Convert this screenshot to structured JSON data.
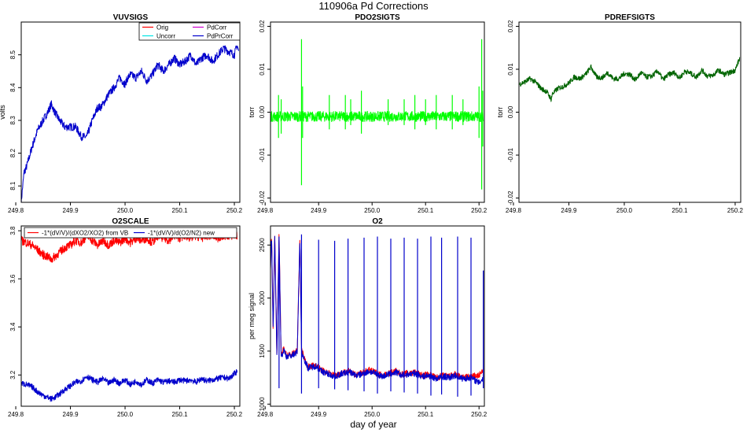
{
  "figure": {
    "title": "110906a   Pd Corrections",
    "xlabel": "day of year"
  },
  "chart_data": [
    {
      "type": "line",
      "title": "VUVSIGS",
      "ylabel": "volts",
      "xlim": [
        249.81,
        250.21
      ],
      "ylim": [
        8.05,
        8.6
      ],
      "xticks": [
        249.8,
        249.9,
        250.0,
        250.1,
        250.2
      ],
      "xtick_labels": [
        "249.8",
        "249.9",
        "250.0",
        "250.1",
        "250.2"
      ],
      "yticks": [
        8.1,
        8.2,
        8.3,
        8.4,
        8.5
      ],
      "ytick_labels": [
        "8.1",
        "8.2",
        "8.3",
        "8.4",
        "8.5"
      ],
      "ytick_rotated": true,
      "legend": {
        "position": "top-right",
        "columns": 2,
        "entries": [
          {
            "name": "Orig",
            "color": "#ff0000"
          },
          {
            "name": "Uncorr",
            "color": "#00e5e5"
          },
          {
            "name": "PdCorr",
            "color": "#d000d0"
          },
          {
            "name": "PdPrCorr",
            "color": "#0000cc"
          }
        ]
      },
      "series": [
        {
          "name": "PdPrCorr",
          "color": "#0000cc",
          "band": 0.012,
          "x": [
            249.81,
            249.815,
            249.82,
            249.83,
            249.84,
            249.85,
            249.86,
            249.865,
            249.87,
            249.88,
            249.89,
            249.9,
            249.91,
            249.92,
            249.93,
            249.94,
            249.95,
            249.955,
            249.96,
            249.97,
            249.98,
            249.99,
            250.0,
            250.005,
            250.01,
            250.02,
            250.03,
            250.04,
            250.05,
            250.06,
            250.07,
            250.08,
            250.09,
            250.1,
            250.11,
            250.12,
            250.13,
            250.14,
            250.15,
            250.16,
            250.17,
            250.18,
            250.19,
            250.2,
            250.205,
            250.208
          ],
          "y": [
            8.05,
            8.14,
            8.16,
            8.22,
            8.27,
            8.3,
            8.33,
            8.35,
            8.33,
            8.3,
            8.28,
            8.28,
            8.28,
            8.25,
            8.25,
            8.3,
            8.34,
            8.34,
            8.35,
            8.38,
            8.4,
            8.43,
            8.41,
            8.43,
            8.44,
            8.43,
            8.45,
            8.42,
            8.44,
            8.47,
            8.45,
            8.47,
            8.49,
            8.47,
            8.48,
            8.5,
            8.47,
            8.49,
            8.5,
            8.48,
            8.5,
            8.52,
            8.51,
            8.5,
            8.53,
            8.51
          ]
        }
      ]
    },
    {
      "type": "line",
      "title": "PDO2SIGTS",
      "ylabel": "torr",
      "xlim": [
        249.81,
        250.21
      ],
      "ylim": [
        -0.021,
        0.021
      ],
      "xticks": [
        249.8,
        249.9,
        250.0,
        250.1,
        250.2
      ],
      "xtick_labels": [
        "249.8",
        "249.9",
        "250.0",
        "250.1",
        "250.2"
      ],
      "yticks": [
        -0.02,
        -0.01,
        0.0,
        0.01,
        0.02
      ],
      "ytick_labels": [
        "-0.02",
        "-0.01",
        "0.00",
        "0.01",
        "0.02"
      ],
      "ytick_rotated": true,
      "series": [
        {
          "name": "",
          "color": "#00ff00",
          "band": 0.0012,
          "x": [
            249.81,
            250.208
          ],
          "y": [
            -0.001,
            -0.001
          ]
        }
      ],
      "spikes": {
        "color": "#00ff00",
        "x": [
          249.825,
          249.83,
          249.868,
          249.87,
          249.92,
          249.95,
          249.96,
          249.98,
          250.03,
          250.06,
          250.08,
          250.1,
          250.12,
          250.15,
          250.17,
          250.2,
          250.205,
          250.207
        ],
        "high": [
          0.004,
          0.003,
          0.017,
          0.006,
          0.004,
          0.004,
          0.003,
          0.005,
          0.003,
          0.003,
          0.004,
          0.003,
          0.004,
          0.004,
          0.003,
          0.006,
          0.017,
          0.005
        ],
        "low": [
          -0.006,
          -0.005,
          -0.017,
          -0.006,
          -0.004,
          -0.004,
          -0.003,
          -0.005,
          -0.003,
          -0.003,
          -0.004,
          -0.003,
          -0.004,
          -0.004,
          -0.003,
          -0.006,
          -0.018,
          -0.008
        ]
      }
    },
    {
      "type": "line",
      "title": "PDREFSIGTS",
      "ylabel": "torr",
      "xlim": [
        249.81,
        250.21
      ],
      "ylim": [
        -0.021,
        0.021
      ],
      "xticks": [
        249.8,
        249.9,
        250.0,
        250.1,
        250.2
      ],
      "xtick_labels": [
        "249.8",
        "249.9",
        "250.0",
        "250.1",
        "250.2"
      ],
      "yticks": [
        -0.02,
        -0.01,
        0.0,
        0.01,
        0.02
      ],
      "ytick_labels": [
        "-0.02",
        "-0.01",
        "0.00",
        "0.01",
        "0.02"
      ],
      "ytick_rotated": true,
      "series": [
        {
          "name": "",
          "color": "#006400",
          "band": 0.0006,
          "x": [
            249.81,
            249.82,
            249.83,
            249.84,
            249.85,
            249.86,
            249.868,
            249.87,
            249.88,
            249.89,
            249.9,
            249.91,
            249.92,
            249.93,
            249.94,
            249.95,
            249.96,
            249.97,
            249.98,
            249.99,
            250.0,
            250.01,
            250.02,
            250.03,
            250.04,
            250.05,
            250.06,
            250.07,
            250.08,
            250.09,
            250.1,
            250.11,
            250.12,
            250.13,
            250.14,
            250.15,
            250.16,
            250.17,
            250.18,
            250.19,
            250.2,
            250.205,
            250.208
          ],
          "y": [
            0.0065,
            0.007,
            0.0078,
            0.007,
            0.0055,
            0.0048,
            0.003,
            0.0042,
            0.0055,
            0.006,
            0.0068,
            0.0082,
            0.0078,
            0.0088,
            0.0105,
            0.0082,
            0.008,
            0.0092,
            0.0078,
            0.0078,
            0.009,
            0.0088,
            0.0075,
            0.0092,
            0.0082,
            0.0084,
            0.0096,
            0.0076,
            0.0088,
            0.0092,
            0.008,
            0.0096,
            0.009,
            0.0082,
            0.0098,
            0.0084,
            0.0086,
            0.0098,
            0.0088,
            0.0092,
            0.0098,
            0.0115,
            0.0125
          ]
        }
      ]
    },
    {
      "type": "line",
      "title": "O2SCALE",
      "ylabel": "",
      "xlim": [
        249.81,
        250.21
      ],
      "ylim": [
        3.07,
        3.82
      ],
      "xticks": [
        249.8,
        249.9,
        250.0,
        250.1,
        250.2
      ],
      "xtick_labels": [
        "249.8",
        "249.9",
        "250.0",
        "250.1",
        "250.2"
      ],
      "yticks": [
        3.2,
        3.4,
        3.6,
        3.8
      ],
      "ytick_labels": [
        "3.2",
        "3.4",
        "3.6",
        "3.8"
      ],
      "ytick_rotated": true,
      "legend": {
        "position": "top",
        "columns": 2,
        "entries": [
          {
            "name": "-1*(dV/V)/(dXO2/XO2) from VB",
            "color": "#ff0000"
          },
          {
            "name": "-1*(dV/V)/d(O2/N2) new",
            "color": "#0000cc"
          }
        ]
      },
      "series": [
        {
          "name": "-1*(dV/V)/(dXO2/XO2) from VB",
          "color": "#ff0000",
          "band": 0.018,
          "x": [
            249.81,
            249.82,
            249.83,
            249.84,
            249.85,
            249.86,
            249.865,
            249.87,
            249.88,
            249.89,
            249.9,
            249.91,
            249.92,
            249.93,
            249.94,
            249.95,
            249.96,
            249.97,
            249.98,
            249.99,
            250.0,
            250.01,
            250.02,
            250.03,
            250.04,
            250.05,
            250.06,
            250.07,
            250.08,
            250.09,
            250.1,
            250.11,
            250.12,
            250.13,
            250.14,
            250.15,
            250.16,
            250.17,
            250.18,
            250.19,
            250.2,
            250.205
          ],
          "y": [
            3.76,
            3.75,
            3.74,
            3.72,
            3.7,
            3.69,
            3.68,
            3.69,
            3.71,
            3.73,
            3.74,
            3.76,
            3.75,
            3.78,
            3.76,
            3.74,
            3.76,
            3.74,
            3.76,
            3.75,
            3.77,
            3.75,
            3.77,
            3.76,
            3.77,
            3.75,
            3.78,
            3.77,
            3.76,
            3.78,
            3.77,
            3.78,
            3.77,
            3.78,
            3.77,
            3.78,
            3.78,
            3.77,
            3.78,
            3.78,
            3.78,
            3.78
          ]
        },
        {
          "name": "-1*(dV/V)/d(O2/N2) new",
          "color": "#0000cc",
          "band": 0.012,
          "x": [
            249.81,
            249.82,
            249.83,
            249.84,
            249.85,
            249.86,
            249.865,
            249.87,
            249.88,
            249.89,
            249.9,
            249.91,
            249.92,
            249.93,
            249.94,
            249.95,
            249.96,
            249.97,
            249.98,
            249.99,
            250.0,
            250.01,
            250.02,
            250.03,
            250.04,
            250.05,
            250.06,
            250.07,
            250.08,
            250.09,
            250.1,
            250.11,
            250.12,
            250.13,
            250.14,
            250.15,
            250.16,
            250.17,
            250.18,
            250.19,
            250.2,
            250.205
          ],
          "y": [
            3.165,
            3.16,
            3.15,
            3.13,
            3.115,
            3.105,
            3.1,
            3.105,
            3.12,
            3.14,
            3.155,
            3.17,
            3.175,
            3.195,
            3.18,
            3.17,
            3.185,
            3.165,
            3.18,
            3.165,
            3.18,
            3.16,
            3.175,
            3.16,
            3.18,
            3.165,
            3.18,
            3.17,
            3.175,
            3.17,
            3.18,
            3.175,
            3.18,
            3.17,
            3.185,
            3.175,
            3.18,
            3.185,
            3.19,
            3.185,
            3.205,
            3.215
          ]
        }
      ]
    },
    {
      "type": "line",
      "title": "O2",
      "ylabel": "per meg signal",
      "xlim": [
        249.81,
        250.21
      ],
      "ylim": [
        980,
        2680
      ],
      "xticks": [
        249.8,
        249.9,
        250.0,
        250.1,
        250.2
      ],
      "xtick_labels": [
        "249.8",
        "249.9",
        "250.0",
        "250.1",
        "250.2"
      ],
      "yticks": [
        1000,
        1500,
        2000,
        2500
      ],
      "ytick_labels": [
        "1000",
        "1500",
        "2000",
        "2500"
      ],
      "ytick_rotated": true,
      "series": [
        {
          "name": "",
          "color": "#ff0000",
          "band": 30,
          "x": [
            249.81,
            249.812,
            249.815,
            249.818,
            249.822,
            249.826,
            249.83,
            249.835,
            249.84,
            249.85,
            249.86,
            249.865,
            249.868,
            249.872,
            249.88,
            249.895,
            249.905,
            249.915,
            249.93,
            249.945,
            249.96,
            249.97,
            249.98,
            249.995,
            250.005,
            250.02,
            250.03,
            250.045,
            250.055,
            250.065,
            250.08,
            250.095,
            250.105,
            250.12,
            250.135,
            250.145,
            250.155,
            250.17,
            250.185,
            250.2,
            250.205,
            250.208
          ],
          "y": [
            2300,
            2620,
            1700,
            2610,
            1450,
            2600,
            1450,
            1530,
            1460,
            1470,
            1500,
            2580,
            1520,
            1450,
            1350,
            1370,
            1320,
            1300,
            1270,
            1300,
            1310,
            1280,
            1290,
            1320,
            1300,
            1270,
            1290,
            1310,
            1280,
            1290,
            1300,
            1270,
            1280,
            1250,
            1270,
            1260,
            1280,
            1250,
            1260,
            1270,
            1300,
            1310
          ]
        },
        {
          "name": "",
          "color": "#0000cc",
          "band": 30,
          "x": [
            249.81,
            249.812,
            249.815,
            249.818,
            249.822,
            249.826,
            249.83,
            249.835,
            249.84,
            249.85,
            249.86,
            249.865,
            249.868,
            249.872,
            249.88,
            249.895,
            249.905,
            249.915,
            249.93,
            249.945,
            249.96,
            249.97,
            249.98,
            249.995,
            250.005,
            250.02,
            250.03,
            250.045,
            250.055,
            250.065,
            250.08,
            250.095,
            250.105,
            250.12,
            250.135,
            250.145,
            250.155,
            250.17,
            250.185,
            250.2,
            250.205,
            250.208
          ],
          "y": [
            2280,
            2600,
            1680,
            2590,
            1440,
            2580,
            1440,
            1510,
            1450,
            1460,
            1490,
            2570,
            1500,
            1440,
            1340,
            1360,
            1310,
            1290,
            1260,
            1290,
            1300,
            1270,
            1280,
            1310,
            1290,
            1260,
            1280,
            1300,
            1270,
            1280,
            1290,
            1260,
            1270,
            1240,
            1260,
            1250,
            1270,
            1240,
            1250,
            1200,
            1230,
            1250
          ]
        }
      ],
      "spikes": {
        "color": "#0000cc",
        "x": [
          249.826,
          249.868,
          249.9,
          249.93,
          249.955,
          249.985,
          250.01,
          250.035,
          250.06,
          250.085,
          250.11,
          250.13,
          250.16,
          250.185,
          250.208
        ],
        "high": [
          2580,
          2600,
          2550,
          2540,
          2560,
          2570,
          2580,
          2560,
          2570,
          2560,
          2580,
          2570,
          2580,
          2570,
          2260
        ],
        "low": [
          1150,
          1100,
          1150,
          1140,
          1130,
          1120,
          1100,
          1120,
          1110,
          1100,
          1080,
          1090,
          1070,
          1080,
          1150
        ]
      }
    }
  ]
}
